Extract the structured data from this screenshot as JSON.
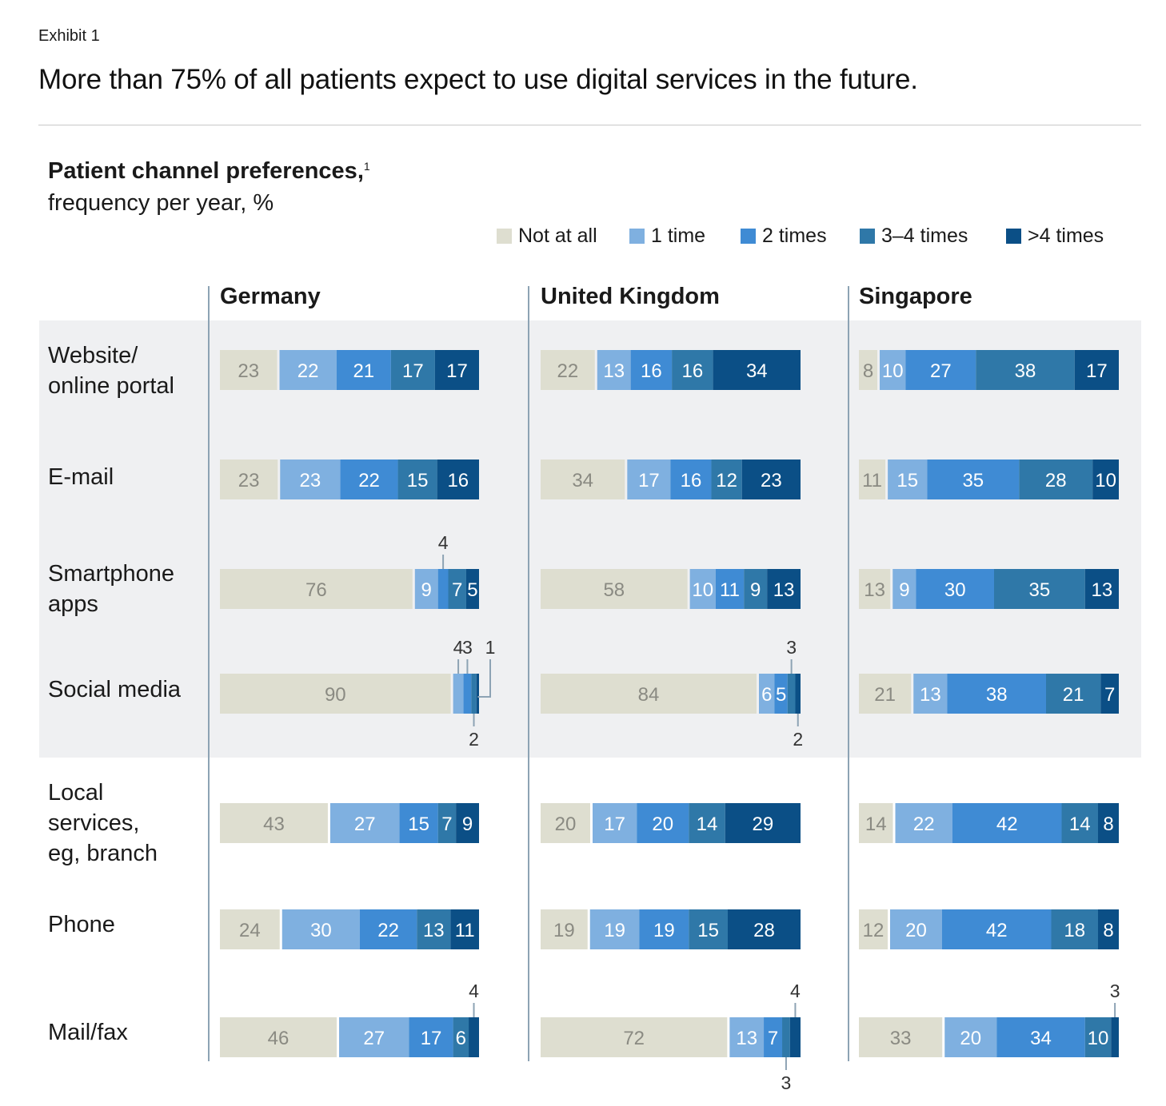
{
  "exhibit": "Exhibit 1",
  "headline": "More than 75% of all patients expect to use digital services in the future.",
  "chart_data": {
    "type": "bar",
    "orientation": "horizontal",
    "stacked": true,
    "title": "Patient channel preferences,",
    "title_footnote": "1",
    "subtitle": "frequency per year, %",
    "legend_position": "top-right",
    "series": [
      {
        "name": "Not at all",
        "color": "#deded0"
      },
      {
        "name": "1 time",
        "color": "#7fb0e0"
      },
      {
        "name": "2 times",
        "color": "#3f8bd4"
      },
      {
        "name": "3–4 times",
        "color": "#2f78a8"
      },
      {
        "name": ">4 times",
        "color": "#0b4f86"
      }
    ],
    "categories": [
      "Website/\nonline portal",
      "E-mail",
      "Smartphone\napps",
      "Social media",
      "Local\nservices,\neg, branch",
      "Phone",
      "Mail/fax"
    ],
    "shaded_categories": [
      "Website/\nonline portal",
      "E-mail",
      "Smartphone\napps",
      "Social media"
    ],
    "panels": [
      {
        "name": "Germany",
        "values": [
          [
            23,
            22,
            21,
            17,
            17
          ],
          [
            23,
            23,
            22,
            15,
            16
          ],
          [
            76,
            9,
            4,
            7,
            5
          ],
          [
            90,
            4,
            3,
            2,
            1
          ],
          [
            43,
            27,
            15,
            7,
            9
          ],
          [
            24,
            30,
            22,
            13,
            11
          ],
          [
            46,
            27,
            17,
            6,
            4
          ]
        ]
      },
      {
        "name": "United Kingdom",
        "values": [
          [
            22,
            13,
            16,
            16,
            34
          ],
          [
            34,
            17,
            16,
            12,
            23
          ],
          [
            58,
            10,
            11,
            9,
            13
          ],
          [
            84,
            6,
            5,
            3,
            2
          ],
          [
            20,
            17,
            20,
            14,
            29
          ],
          [
            19,
            19,
            19,
            15,
            28
          ],
          [
            72,
            13,
            7,
            3,
            4
          ]
        ]
      },
      {
        "name": "Singapore",
        "values": [
          [
            8,
            10,
            27,
            38,
            17
          ],
          [
            11,
            15,
            35,
            28,
            10
          ],
          [
            13,
            9,
            30,
            35,
            13
          ],
          [
            21,
            13,
            38,
            21,
            7
          ],
          [
            14,
            22,
            42,
            14,
            8
          ],
          [
            12,
            20,
            42,
            18,
            8
          ],
          [
            33,
            20,
            34,
            10,
            3
          ]
        ]
      }
    ],
    "callouts": [
      {
        "panel": "Germany",
        "category": "Smartphone\napps",
        "segment": "2 times",
        "label": "4",
        "side": "top"
      },
      {
        "panel": "Germany",
        "category": "Social media",
        "segment": "1 time",
        "label": "4",
        "side": "top"
      },
      {
        "panel": "Germany",
        "category": "Social media",
        "segment": "2 times",
        "label": "3",
        "side": "top"
      },
      {
        "panel": "Germany",
        "category": "Social media",
        "segment": "3–4 times",
        "label": "2",
        "side": "bottom"
      },
      {
        "panel": "Germany",
        "category": "Social media",
        "segment": ">4 times",
        "label": "1",
        "side": "right"
      },
      {
        "panel": "Germany",
        "category": "Mail/fax",
        "segment": ">4 times",
        "label": "4",
        "side": "top"
      },
      {
        "panel": "United Kingdom",
        "category": "Social media",
        "segment": "3–4 times",
        "label": "3",
        "side": "top"
      },
      {
        "panel": "United Kingdom",
        "category": "Social media",
        "segment": ">4 times",
        "label": "2",
        "side": "bottom"
      },
      {
        "panel": "United Kingdom",
        "category": "Mail/fax",
        "segment": "3–4 times",
        "label": "3",
        "side": "bottom"
      },
      {
        "panel": "United Kingdom",
        "category": "Mail/fax",
        "segment": ">4 times",
        "label": "4",
        "side": "top"
      },
      {
        "panel": "Singapore",
        "category": "Mail/fax",
        "segment": ">4 times",
        "label": "3",
        "side": "top"
      }
    ]
  }
}
